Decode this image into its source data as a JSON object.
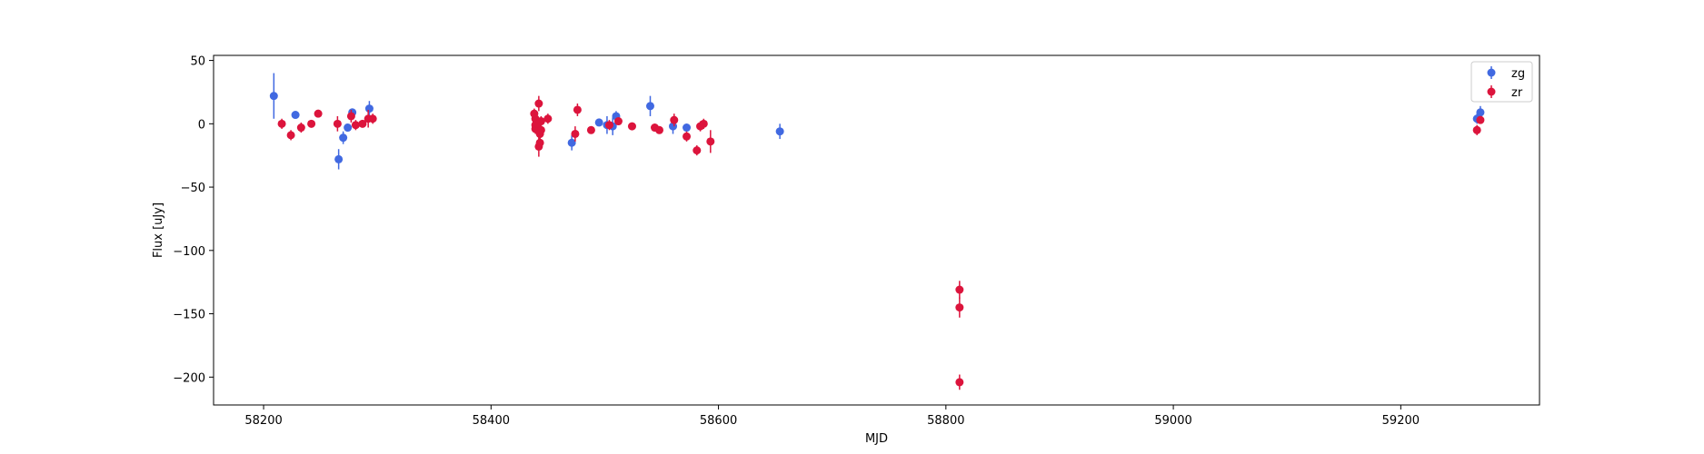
{
  "chart_data": {
    "type": "scatter",
    "title": "",
    "xlabel": "MJD",
    "ylabel": "Flux [uJy]",
    "xlim": [
      58156,
      59322
    ],
    "ylim": [
      -222,
      54
    ],
    "x_ticks": [
      58200,
      58400,
      58600,
      58800,
      59000,
      59200
    ],
    "y_ticks": [
      50,
      0,
      -50,
      -100,
      -150,
      -200
    ],
    "x_tick_labels": [
      "58200",
      "58400",
      "58600",
      "58800",
      "59000",
      "59200"
    ],
    "y_tick_labels": [
      "50",
      "0",
      "−50",
      "−100",
      "−150",
      "−200"
    ],
    "grid": false,
    "legend_position": "upper right",
    "series": [
      {
        "name": "zg",
        "color": "#4169e1",
        "points": [
          {
            "x": 58209,
            "y": 22,
            "err": 18
          },
          {
            "x": 58228,
            "y": 7,
            "err": 2
          },
          {
            "x": 58266,
            "y": -28,
            "err": 8
          },
          {
            "x": 58270,
            "y": -11,
            "err": 5
          },
          {
            "x": 58274,
            "y": -3,
            "err": 3
          },
          {
            "x": 58278,
            "y": 9,
            "err": 3
          },
          {
            "x": 58293,
            "y": 12,
            "err": 6
          },
          {
            "x": 58471,
            "y": -15,
            "err": 6
          },
          {
            "x": 58495,
            "y": 1,
            "err": 3
          },
          {
            "x": 58502,
            "y": -1,
            "err": 7
          },
          {
            "x": 58507,
            "y": -2,
            "err": 7
          },
          {
            "x": 58510,
            "y": 6,
            "err": 4
          },
          {
            "x": 58540,
            "y": 14,
            "err": 8
          },
          {
            "x": 58560,
            "y": -2,
            "err": 6
          },
          {
            "x": 58572,
            "y": -3,
            "err": 3
          },
          {
            "x": 58654,
            "y": -6,
            "err": 6
          },
          {
            "x": 59267,
            "y": 4,
            "err": 4
          },
          {
            "x": 59270,
            "y": 9,
            "err": 5
          }
        ]
      },
      {
        "name": "zr",
        "color": "#dc143c",
        "points": [
          {
            "x": 58216,
            "y": 0,
            "err": 4
          },
          {
            "x": 58224,
            "y": -9,
            "err": 4
          },
          {
            "x": 58233,
            "y": -3,
            "err": 4
          },
          {
            "x": 58242,
            "y": 0,
            "err": 3
          },
          {
            "x": 58248,
            "y": 8,
            "err": 3
          },
          {
            "x": 58265,
            "y": 0,
            "err": 6
          },
          {
            "x": 58277,
            "y": 6,
            "err": 5
          },
          {
            "x": 58281,
            "y": -1,
            "err": 4
          },
          {
            "x": 58287,
            "y": 0,
            "err": 3
          },
          {
            "x": 58292,
            "y": 4,
            "err": 7
          },
          {
            "x": 58296,
            "y": 4,
            "err": 4
          },
          {
            "x": 58438,
            "y": 8,
            "err": 4
          },
          {
            "x": 58439,
            "y": 4,
            "err": 4
          },
          {
            "x": 58439,
            "y": -1,
            "err": 4
          },
          {
            "x": 58439,
            "y": -4,
            "err": 4
          },
          {
            "x": 58440,
            "y": 2,
            "err": 5
          },
          {
            "x": 58441,
            "y": -5,
            "err": 5
          },
          {
            "x": 58441,
            "y": 0,
            "err": 4
          },
          {
            "x": 58442,
            "y": -18,
            "err": 8
          },
          {
            "x": 58442,
            "y": 16,
            "err": 6
          },
          {
            "x": 58443,
            "y": -8,
            "err": 6
          },
          {
            "x": 58443,
            "y": -15,
            "err": 5
          },
          {
            "x": 58444,
            "y": -5,
            "err": 6
          },
          {
            "x": 58444,
            "y": 2,
            "err": 4
          },
          {
            "x": 58450,
            "y": 4,
            "err": 4
          },
          {
            "x": 58474,
            "y": -8,
            "err": 6
          },
          {
            "x": 58476,
            "y": 11,
            "err": 5
          },
          {
            "x": 58488,
            "y": -5,
            "err": 3
          },
          {
            "x": 58504,
            "y": -1,
            "err": 4
          },
          {
            "x": 58512,
            "y": 2,
            "err": 3
          },
          {
            "x": 58524,
            "y": -2,
            "err": 3
          },
          {
            "x": 58544,
            "y": -3,
            "err": 3
          },
          {
            "x": 58548,
            "y": -5,
            "err": 3
          },
          {
            "x": 58561,
            "y": 3,
            "err": 5
          },
          {
            "x": 58572,
            "y": -10,
            "err": 4
          },
          {
            "x": 58581,
            "y": -21,
            "err": 4
          },
          {
            "x": 58584,
            "y": -2,
            "err": 4
          },
          {
            "x": 58587,
            "y": 0,
            "err": 4
          },
          {
            "x": 58593,
            "y": -14,
            "err": 9
          },
          {
            "x": 58812,
            "y": -131,
            "err": 7
          },
          {
            "x": 58812,
            "y": -145,
            "err": 8
          },
          {
            "x": 58812,
            "y": -204,
            "err": 6
          },
          {
            "x": 59267,
            "y": -5,
            "err": 4
          },
          {
            "x": 59270,
            "y": 3,
            "err": 3
          }
        ]
      }
    ]
  }
}
